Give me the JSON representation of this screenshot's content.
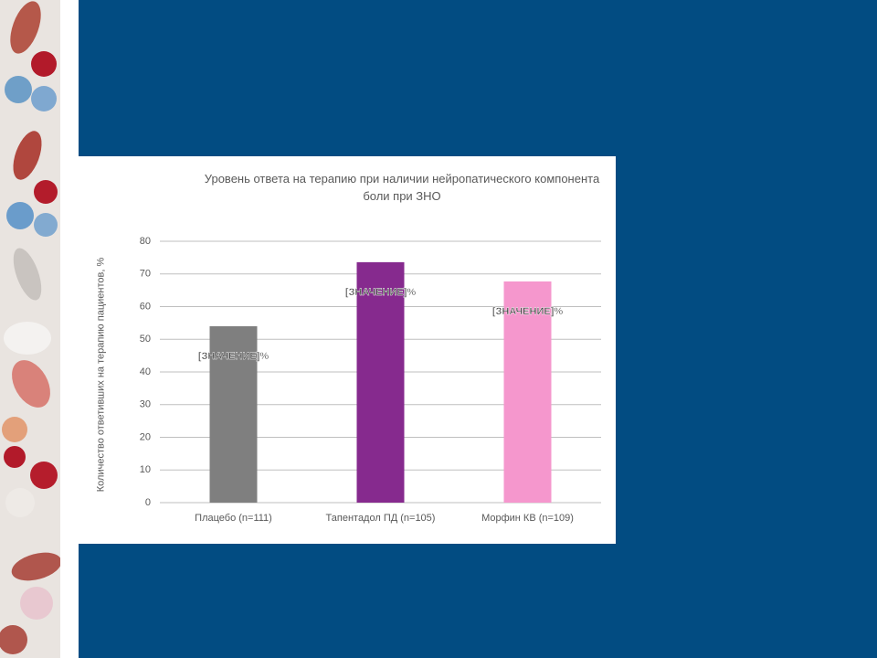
{
  "chart_data": {
    "type": "bar",
    "title": "Уровень ответа на терапию при наличии нейропатического компонента боли при ЗНО",
    "y_label": "Количество ответивших на терапию пациентов, %",
    "categories": [
      "Плацебо (n=111)",
      "Тапентадол ПД (n=105)",
      "Морфин КВ (n=109)"
    ],
    "values": [
      54,
      73.6,
      67.7
    ],
    "value_labels": [
      "[ЗНАЧЕНИЕ]%",
      "[ЗНАЧЕНИЕ]%",
      "[ЗНАЧЕНИЕ]%"
    ],
    "colors": [
      "#7f7f7f",
      "#862a8e",
      "#f597cd"
    ],
    "ylim": [
      0,
      80
    ],
    "yticks": [
      0,
      10,
      20,
      30,
      40,
      50,
      60,
      70,
      80
    ],
    "grid": true
  }
}
